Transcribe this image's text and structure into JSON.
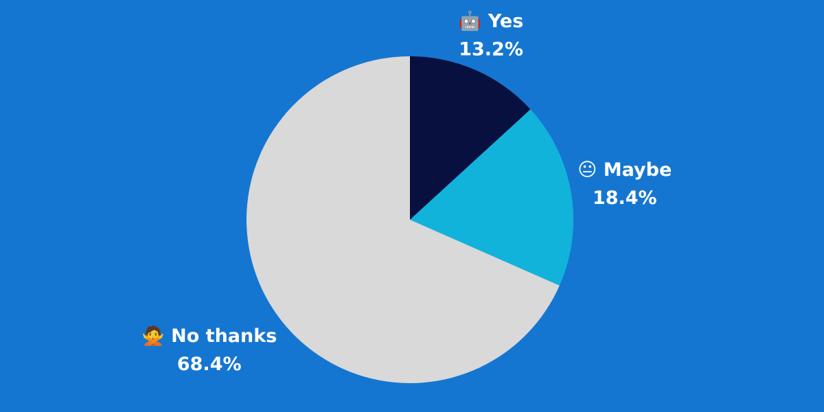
{
  "chart_data": {
    "type": "pie",
    "categories": [
      "🤖 Yes",
      "😐 Maybe",
      "🙅 No thanks"
    ],
    "values": [
      13.2,
      18.4,
      68.4
    ],
    "value_labels": [
      "13.2%",
      "18.4%",
      "68.4%"
    ],
    "colors": [
      "#08103f",
      "#12b3db",
      "#d9d9d9"
    ]
  }
}
